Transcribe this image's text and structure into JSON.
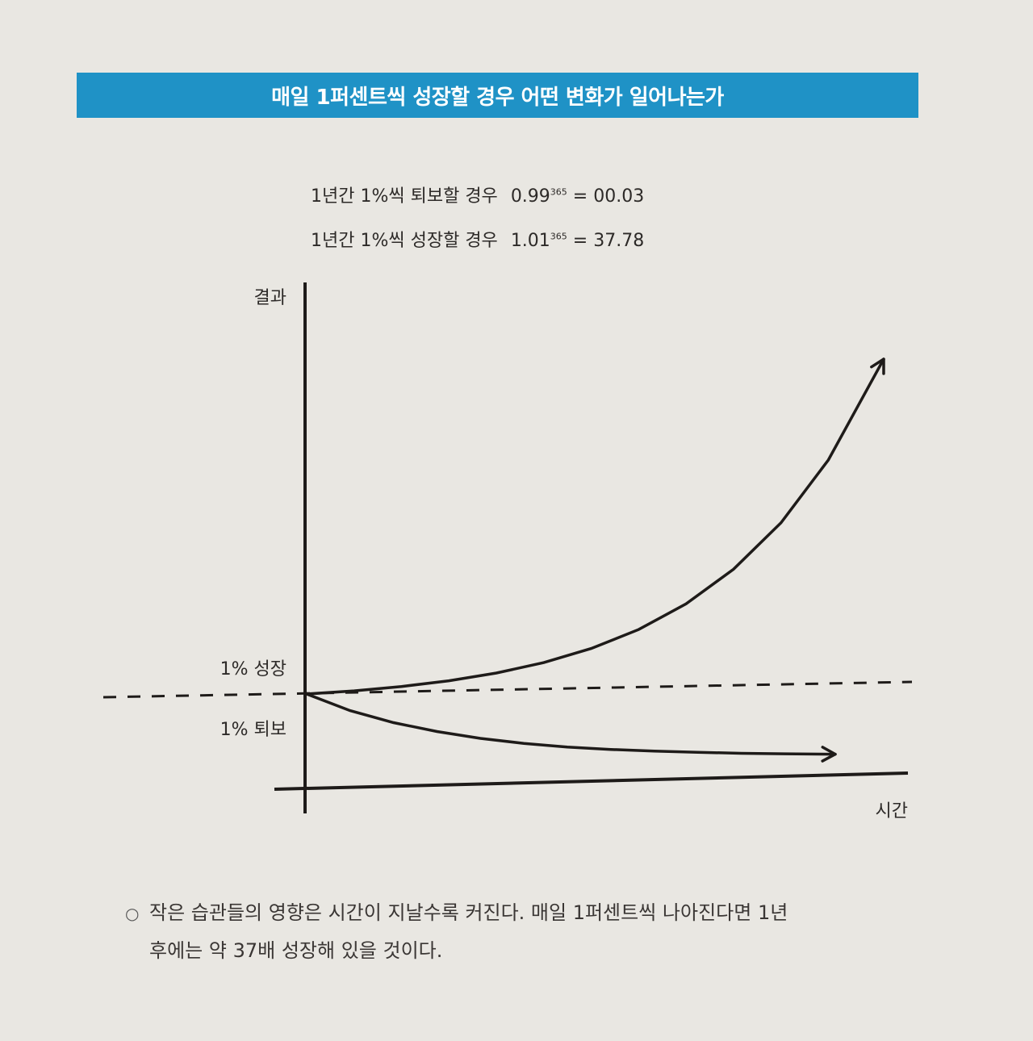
{
  "header": {
    "title": "매일 1퍼센트씩 성장할 경우 어떤 변화가 일어나는가",
    "accent_color": "#1f92c6"
  },
  "formulas": [
    {
      "label": "1년간 1%씩 퇴보할 경우",
      "base": "0.99",
      "exp": "365",
      "result": "00.03"
    },
    {
      "label": "1년간 1%씩 성장할 경우",
      "base": "1.01",
      "exp": "365",
      "result": "37.78"
    }
  ],
  "chart_data": {
    "type": "line",
    "ylabel": "결과",
    "xlabel": "시간",
    "baseline_label_top": "1% 성장",
    "baseline_label_bottom": "1% 퇴보",
    "x": [
      0,
      30,
      60,
      90,
      120,
      150,
      180,
      210,
      240,
      270,
      300,
      330,
      365
    ],
    "series": [
      {
        "name": "1% 성장",
        "style": "solid-arrow",
        "values": [
          1.0,
          1.35,
          1.82,
          2.45,
          3.3,
          4.45,
          6.0,
          8.08,
          10.9,
          14.7,
          19.8,
          26.7,
          37.78
        ]
      },
      {
        "name": "1% 퇴보",
        "style": "solid-arrow",
        "values": [
          1.0,
          0.74,
          0.55,
          0.41,
          0.3,
          0.22,
          0.16,
          0.12,
          0.09,
          0.07,
          0.05,
          0.04,
          0.03
        ]
      }
    ],
    "baseline": {
      "value": 1.0,
      "style": "dashed"
    },
    "grid": false
  },
  "caption": {
    "bullet": "○",
    "line1": "작은 습관들의 영향은 시간이 지날수록 커진다. 매일 1퍼센트씩 나아진다면 1년",
    "line2": "후에는 약 37배 성장해 있을 것이다."
  }
}
